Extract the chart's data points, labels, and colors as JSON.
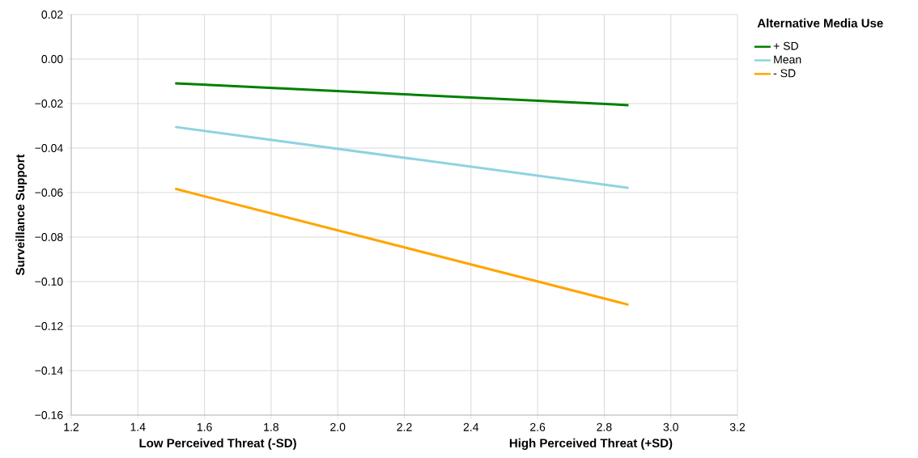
{
  "chart_data": {
    "type": "line",
    "ylabel": "Surveillance Support",
    "legend_title": "Alternative Media Use",
    "x": [
      1.512,
      2.873
    ],
    "series": [
      {
        "name": "+ SD",
        "color": "#008000",
        "values": [
          -0.0109,
          -0.0207
        ]
      },
      {
        "name": "Mean",
        "color": "#8fd3e0",
        "values": [
          -0.0305,
          -0.0579
        ]
      },
      {
        "name": "- SD",
        "color": "#ffa500",
        "values": [
          -0.0583,
          -0.1104
        ]
      }
    ],
    "xlim": [
      1.2,
      3.2
    ],
    "ylim": [
      -0.16,
      0.02
    ],
    "xticks": [
      1.2,
      1.4,
      1.6,
      1.8,
      {
        "value": 2,
        "label": "2.0"
      },
      2.2,
      2.4,
      2.6,
      2.8,
      {
        "value": 3,
        "label": "3.0"
      },
      3.2
    ],
    "yticks": [
      {
        "value": 0.02,
        "label": "0.02"
      },
      {
        "value": 0,
        "label": "0.00"
      },
      {
        "value": -0.02,
        "label": "−0.02"
      },
      {
        "value": -0.04,
        "label": "−0.04"
      },
      {
        "value": -0.06,
        "label": "−0.06"
      },
      {
        "value": -0.08,
        "label": "−0.08"
      },
      {
        "value": -0.1,
        "label": "−0.10"
      },
      {
        "value": -0.12,
        "label": "−0.12"
      },
      {
        "value": -0.14,
        "label": "−0.14"
      },
      {
        "value": -0.16,
        "label": "−0.16"
      }
    ],
    "annotations": [
      "Low Perceived Threat (-SD)",
      "High Perceived Threat (+SD)"
    ],
    "grid": true,
    "legend": "top right",
    "marker": "none",
    "line_style": "solid"
  }
}
